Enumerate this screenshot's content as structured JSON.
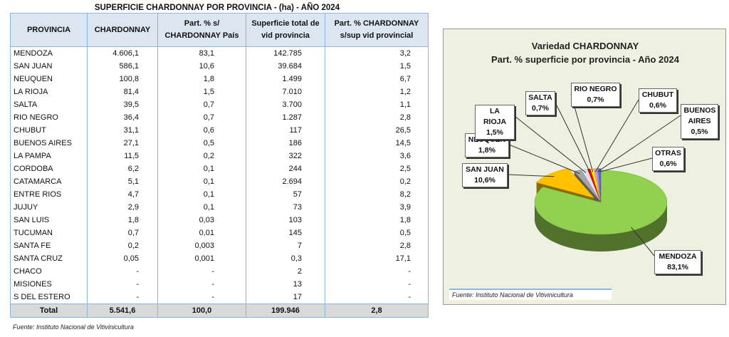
{
  "table": {
    "title": "SUPERFICIE CHARDONNAY POR PROVINCIA - (ha) - AÑO 2024",
    "headers": [
      "PROVINCIA",
      "CHARDONNAY",
      "Part. % s/ CHARDONNAY País",
      "Superficie  total de vid provincia",
      "Part. % CHARDONNAY s/sup vid provincial"
    ],
    "rows": [
      [
        "MENDOZA",
        "4.606,1",
        "83,1",
        "142.785",
        "3,2"
      ],
      [
        "SAN JUAN",
        "586,1",
        "10,6",
        "39.684",
        "1,5"
      ],
      [
        "NEUQUEN",
        "100,8",
        "1,8",
        "1.499",
        "6,7"
      ],
      [
        "LA RIOJA",
        "81,4",
        "1,5",
        "7.010",
        "1,2"
      ],
      [
        "SALTA",
        "39,5",
        "0,7",
        "3.700",
        "1,1"
      ],
      [
        "RIO NEGRO",
        "36,4",
        "0,7",
        "1.287",
        "2,8"
      ],
      [
        "CHUBUT",
        "31,1",
        "0,6",
        "117",
        "26,5"
      ],
      [
        "BUENOS AIRES",
        "27,1",
        "0,5",
        "186",
        "14,5"
      ],
      [
        "LA PAMPA",
        "11,5",
        "0,2",
        "322",
        "3,6"
      ],
      [
        "CORDOBA",
        "6,2",
        "0,1",
        "244",
        "2,5"
      ],
      [
        "CATAMARCA",
        "5,1",
        "0,1",
        "2.694",
        "0,2"
      ],
      [
        "ENTRE RIOS",
        "4,7",
        "0,1",
        "57",
        "8,2"
      ],
      [
        "JUJUY",
        "2,9",
        "0,1",
        "73",
        "3,9"
      ],
      [
        "SAN LUIS",
        "1,8",
        "0,03",
        "103",
        "1,8"
      ],
      [
        "TUCUMAN",
        "0,7",
        "0,01",
        "145",
        "0,5"
      ],
      [
        "SANTA FE",
        "0,2",
        "0,003",
        "7",
        "2,8"
      ],
      [
        "SANTA CRUZ",
        "0,05",
        "0,001",
        "0,3",
        "17,1"
      ],
      [
        "CHACO",
        "-",
        "-",
        "2",
        "-"
      ],
      [
        "MISIONES",
        "-",
        "-",
        "13",
        "-"
      ],
      [
        "S DEL ESTERO",
        "-",
        "-",
        "17",
        "-"
      ]
    ],
    "total": [
      "Total",
      "5.541,6",
      "100,0",
      "199.946",
      "2,8"
    ],
    "source": "Fuente: Instituto Nacional de Vitivinicultura"
  },
  "chart_data": {
    "type": "pie",
    "title": "Variedad CHARDONNAY",
    "subtitle": "Part. % superficie por provincia - Año 2024",
    "source": "Fuente: Instituto Nacional de Vitivinicultura",
    "slices": [
      {
        "name": "MENDOZA",
        "value": 83.1,
        "label": "83,1%",
        "color": "#92d050"
      },
      {
        "name": "SAN JUAN",
        "value": 10.6,
        "label": "10,6%",
        "color": "#ffc000"
      },
      {
        "name": "NEUQUEN",
        "value": 1.8,
        "label": "1,8%",
        "color": "#a6a6a6"
      },
      {
        "name": "LA RIOJA",
        "value": 1.5,
        "label": "1,5%",
        "color": "#e0e0e8"
      },
      {
        "name": "SALTA",
        "value": 0.7,
        "label": "0,7%",
        "color": "#ff0000"
      },
      {
        "name": "RIO NEGRO",
        "value": 0.7,
        "label": "0,7%",
        "color": "#ffff00"
      },
      {
        "name": "CHUBUT",
        "value": 0.6,
        "label": "0,6%",
        "color": "#f4a0a0"
      },
      {
        "name": "BUENOS AIRES",
        "value": 0.5,
        "label": "0,5%",
        "color": "#9999ff"
      },
      {
        "name": "OTRAS",
        "value": 0.6,
        "label": "0,6%",
        "color": "#6666cc"
      }
    ]
  }
}
